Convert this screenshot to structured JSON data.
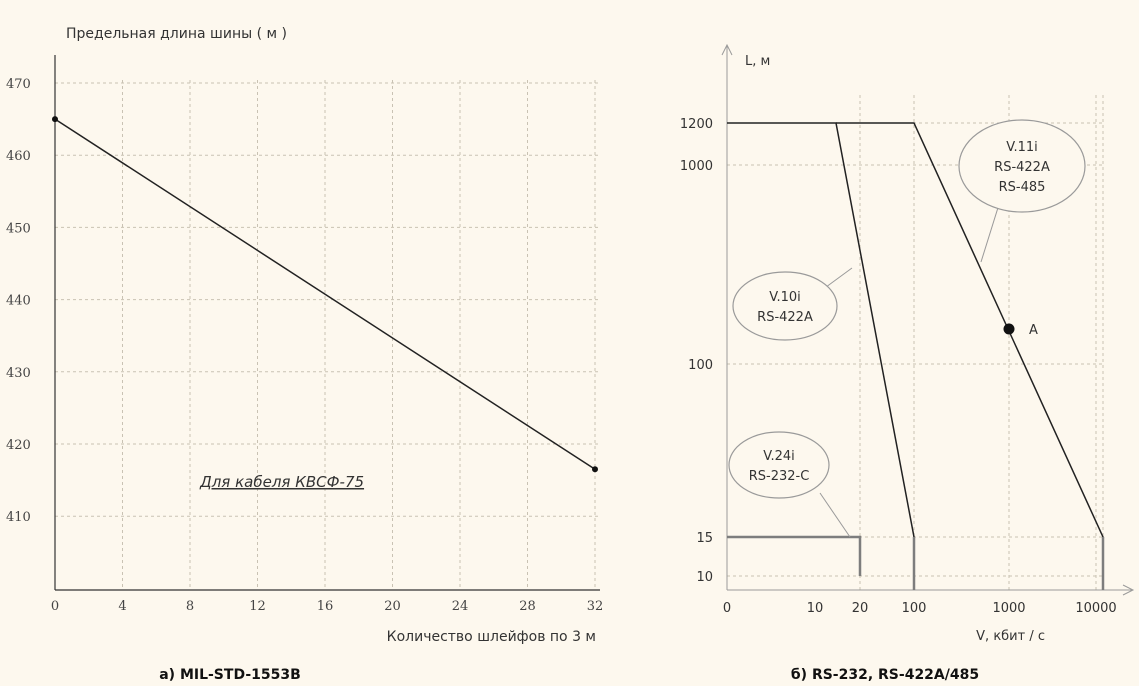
{
  "chart_data": [
    {
      "type": "line",
      "ylabel": "Предельная длина шины ( м )",
      "xlabel": "Количество шлейфов по 3 м",
      "x_ticks": [
        "0",
        "4",
        "8",
        "12",
        "16",
        "20",
        "24",
        "28",
        "32"
      ],
      "y_ticks": [
        "470",
        "460",
        "450",
        "440",
        "430",
        "420",
        "410"
      ],
      "xlim": [
        0,
        32
      ],
      "ylim": [
        400,
        473
      ],
      "grid": true,
      "series": [
        {
          "x": [
            0,
            32
          ],
          "y": [
            465,
            416.5
          ]
        }
      ],
      "annotation": "Для кабеля КВСФ-75",
      "caption": "а) MIL-STD-1553B"
    },
    {
      "type": "line",
      "ylabel": "L, м",
      "xlabel": "V,  кбит / с",
      "x_ticks": [
        "0",
        "10",
        "20",
        "100",
        "1000",
        "10000"
      ],
      "y_ticks": [
        "1200",
        "1000",
        "100",
        "15",
        "10"
      ],
      "grid": true,
      "series": [
        {
          "x": [
            0,
            20,
            20
          ],
          "y": [
            15,
            15,
            10
          ],
          "color": "#7d7d7d"
        },
        {
          "x": [
            0,
            12,
            100,
            100
          ],
          "y": [
            1200,
            1200,
            15,
            10
          ]
        },
        {
          "x": [
            12,
            100,
            12000,
            12000
          ],
          "y": [
            1200,
            1200,
            15,
            10
          ]
        }
      ],
      "labels": [
        {
          "lines": [
            "V.11i",
            "RS-422A",
            "RS-485"
          ]
        },
        {
          "lines": [
            "V.10i",
            "RS-422A"
          ]
        },
        {
          "lines": [
            "V.24i",
            "RS-232-C"
          ]
        }
      ],
      "point": {
        "x": 1000,
        "y": 140,
        "label": "A"
      },
      "caption": "б) RS-232, RS-422A/485"
    }
  ]
}
